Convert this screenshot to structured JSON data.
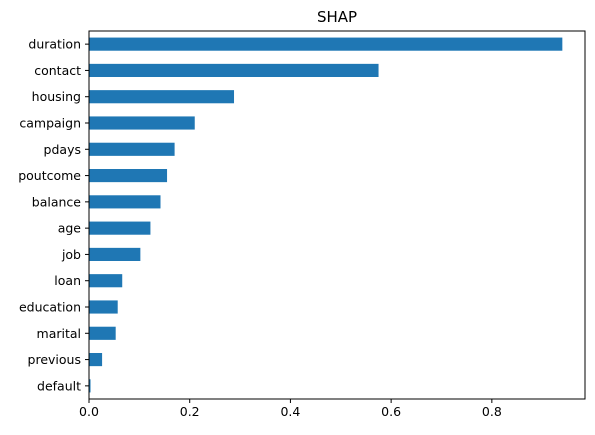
{
  "chart_data": {
    "type": "bar",
    "orientation": "horizontal",
    "title": "SHAP",
    "xlabel": "",
    "ylabel": "",
    "categories": [
      "duration",
      "contact",
      "housing",
      "campaign",
      "pdays",
      "poutcome",
      "balance",
      "age",
      "job",
      "loan",
      "education",
      "marital",
      "previous",
      "default"
    ],
    "values": [
      0.94,
      0.575,
      0.288,
      0.21,
      0.17,
      0.155,
      0.142,
      0.122,
      0.102,
      0.066,
      0.057,
      0.053,
      0.026,
      0.003
    ],
    "xlim": [
      0,
      0.985
    ],
    "xticks": [
      "0.0",
      "0.2",
      "0.4",
      "0.6",
      "0.8"
    ],
    "xtick_values": [
      0,
      0.2,
      0.4,
      0.6,
      0.8
    ],
    "grid": false,
    "colors": {
      "bar": "#1f77b4"
    }
  }
}
